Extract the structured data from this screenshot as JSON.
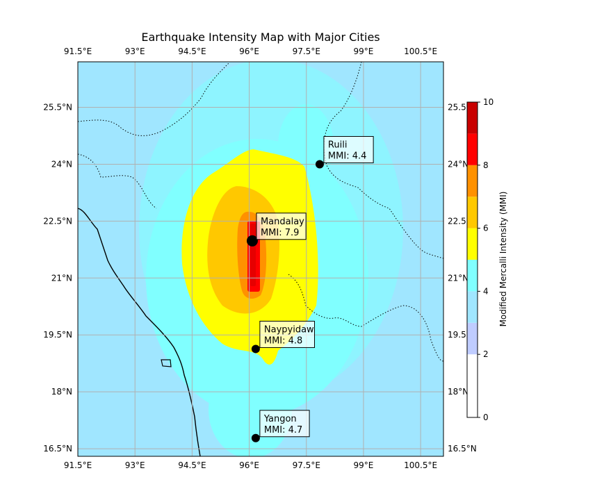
{
  "title": "Earthquake Intensity Map with Major Cities",
  "map": {
    "lon_range": [
      91.5,
      101.1
    ],
    "lat_range": [
      16.3,
      26.7
    ],
    "lon_ticks": [
      "91.5°E",
      "93°E",
      "94.5°E",
      "96°E",
      "97.5°E",
      "99°E",
      "100.5°E"
    ],
    "lat_ticks": [
      "16.5°N",
      "18°N",
      "19.5°N",
      "21°N",
      "22.5°N",
      "24°N",
      "25.5°N"
    ],
    "grid": true,
    "fault_rupture": {
      "lon": 95.9,
      "lat_from": 20.8,
      "lat_to": 22.5
    }
  },
  "cities": [
    {
      "name": "Mandalay",
      "mmi": "MMI: 7.9",
      "lon": 96.08,
      "lat": 21.98
    },
    {
      "name": "Naypyidaw",
      "mmi": "MMI: 4.8",
      "lon": 96.17,
      "lat": 19.13
    },
    {
      "name": "Yangon",
      "mmi": "MMI: 4.7",
      "lon": 96.17,
      "lat": 16.78
    },
    {
      "name": "Ruili",
      "mmi": "MMI: 4.4",
      "lon": 97.85,
      "lat": 24.0
    }
  ],
  "colorbar": {
    "label": "Modified Mercalli Intensity (MMI)",
    "ticks": [
      "0",
      "2",
      "4",
      "6",
      "8",
      "10"
    ],
    "levels": [
      {
        "from": 0,
        "to": 2,
        "color": "#ffffff"
      },
      {
        "from": 2,
        "to": 3,
        "color": "#bfccff"
      },
      {
        "from": 3,
        "to": 4,
        "color": "#a0e6ff"
      },
      {
        "from": 4,
        "to": 5,
        "color": "#80ffff"
      },
      {
        "from": 5,
        "to": 6,
        "color": "#ffff00"
      },
      {
        "from": 6,
        "to": 7,
        "color": "#ffc800"
      },
      {
        "from": 7,
        "to": 8,
        "color": "#ff9100"
      },
      {
        "from": 8,
        "to": 9,
        "color": "#ff0000"
      },
      {
        "from": 9,
        "to": 10,
        "color": "#c80000"
      }
    ]
  }
}
